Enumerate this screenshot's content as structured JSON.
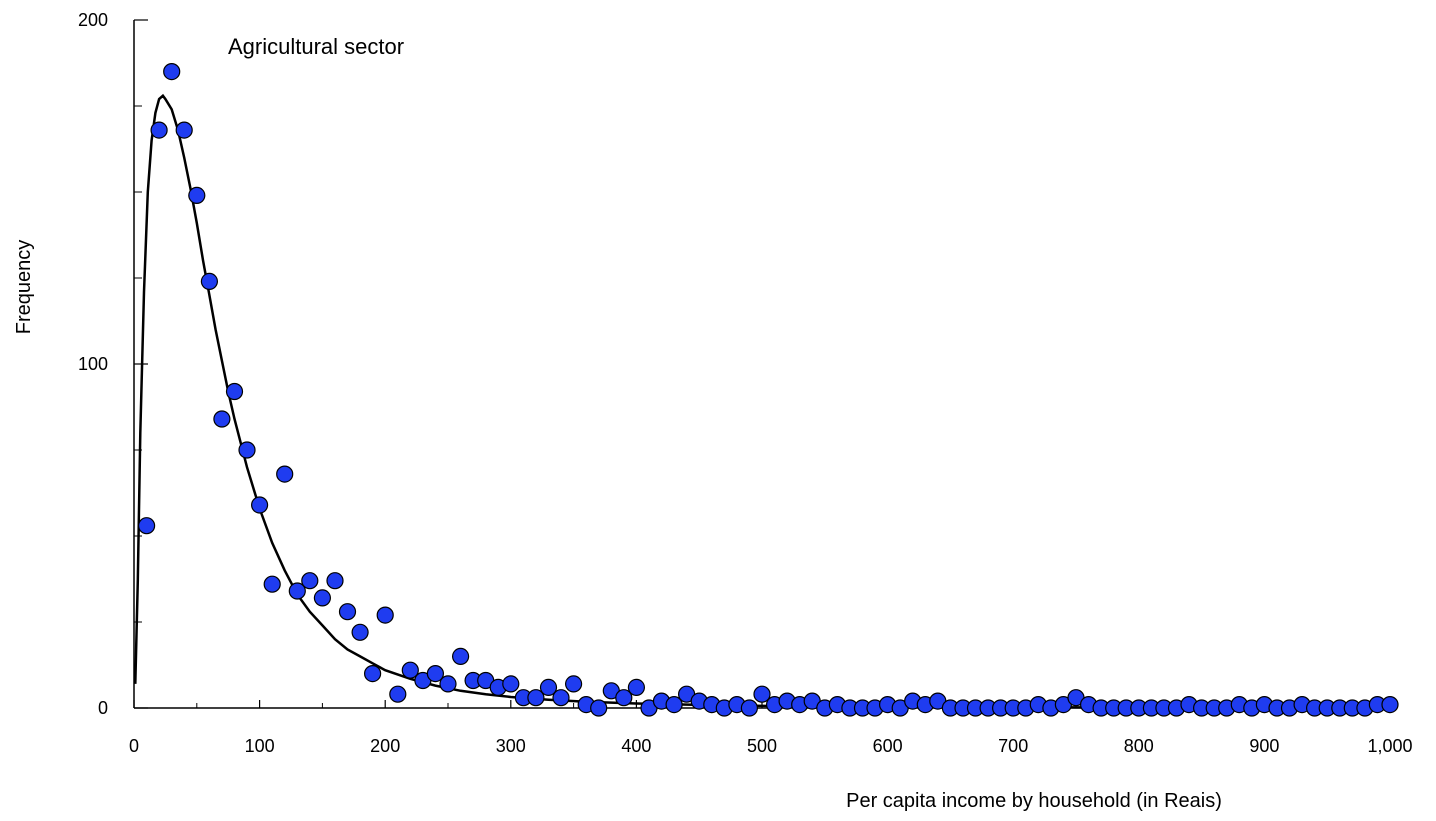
{
  "chart_data": {
    "type": "scatter",
    "annotation": "Agricultural sector",
    "xlabel": "Per capita income by household (in Reais)",
    "ylabel": "Frequency",
    "xlim": [
      0,
      1000
    ],
    "ylim": [
      0,
      200
    ],
    "x_ticks": [
      0,
      100,
      200,
      300,
      400,
      500,
      600,
      700,
      800,
      900,
      1000
    ],
    "x_tick_labels": [
      "0",
      "100",
      "200",
      "300",
      "400",
      "500",
      "600",
      "700",
      "800",
      "900",
      "1,000"
    ],
    "y_ticks": [
      0,
      100,
      200
    ],
    "y_tick_labels": [
      "0",
      "100",
      "200"
    ],
    "grid": false,
    "marker_color": "#1f3cf0",
    "curve_color": "#000000",
    "series": [
      {
        "type": "scatter",
        "points": [
          [
            10,
            53
          ],
          [
            20,
            168
          ],
          [
            30,
            185
          ],
          [
            40,
            168
          ],
          [
            50,
            149
          ],
          [
            60,
            124
          ],
          [
            70,
            84
          ],
          [
            80,
            92
          ],
          [
            90,
            75
          ],
          [
            100,
            59
          ],
          [
            110,
            36
          ],
          [
            120,
            68
          ],
          [
            130,
            34
          ],
          [
            140,
            37
          ],
          [
            150,
            32
          ],
          [
            160,
            37
          ],
          [
            170,
            28
          ],
          [
            180,
            22
          ],
          [
            190,
            10
          ],
          [
            200,
            27
          ],
          [
            210,
            4
          ],
          [
            220,
            11
          ],
          [
            230,
            8
          ],
          [
            240,
            10
          ],
          [
            250,
            7
          ],
          [
            260,
            15
          ],
          [
            270,
            8
          ],
          [
            280,
            8
          ],
          [
            290,
            6
          ],
          [
            300,
            7
          ],
          [
            310,
            3
          ],
          [
            320,
            3
          ],
          [
            330,
            6
          ],
          [
            340,
            3
          ],
          [
            350,
            7
          ],
          [
            360,
            1
          ],
          [
            370,
            0
          ],
          [
            380,
            5
          ],
          [
            390,
            3
          ],
          [
            400,
            6
          ],
          [
            410,
            0
          ],
          [
            420,
            2
          ],
          [
            430,
            1
          ],
          [
            440,
            4
          ],
          [
            450,
            2
          ],
          [
            460,
            1
          ],
          [
            470,
            0
          ],
          [
            480,
            1
          ],
          [
            490,
            0
          ],
          [
            500,
            4
          ],
          [
            510,
            1
          ],
          [
            520,
            2
          ],
          [
            530,
            1
          ],
          [
            540,
            2
          ],
          [
            550,
            0
          ],
          [
            560,
            1
          ],
          [
            570,
            0
          ],
          [
            580,
            0
          ],
          [
            590,
            0
          ],
          [
            600,
            1
          ],
          [
            610,
            0
          ],
          [
            620,
            2
          ],
          [
            630,
            1
          ],
          [
            640,
            2
          ],
          [
            650,
            0
          ],
          [
            660,
            0
          ],
          [
            670,
            0
          ],
          [
            680,
            0
          ],
          [
            690,
            0
          ],
          [
            700,
            0
          ],
          [
            710,
            0
          ],
          [
            720,
            1
          ],
          [
            730,
            0
          ],
          [
            740,
            1
          ],
          [
            750,
            3
          ],
          [
            760,
            1
          ],
          [
            770,
            0
          ],
          [
            780,
            0
          ],
          [
            790,
            0
          ],
          [
            800,
            0
          ],
          [
            810,
            0
          ],
          [
            820,
            0
          ],
          [
            830,
            0
          ],
          [
            840,
            1
          ],
          [
            850,
            0
          ],
          [
            860,
            0
          ],
          [
            870,
            0
          ],
          [
            880,
            1
          ],
          [
            890,
            0
          ],
          [
            900,
            1
          ],
          [
            910,
            0
          ],
          [
            920,
            0
          ],
          [
            930,
            1
          ],
          [
            940,
            0
          ],
          [
            950,
            0
          ],
          [
            960,
            0
          ],
          [
            970,
            0
          ],
          [
            980,
            0
          ],
          [
            990,
            1
          ],
          [
            1000,
            1
          ]
        ]
      },
      {
        "type": "line",
        "points": [
          [
            1,
            7
          ],
          [
            3,
            37
          ],
          [
            5,
            80
          ],
          [
            8,
            121
          ],
          [
            11,
            150
          ],
          [
            14,
            165
          ],
          [
            17,
            173
          ],
          [
            20,
            177
          ],
          [
            23,
            178
          ],
          [
            25,
            177
          ],
          [
            30,
            174
          ],
          [
            35,
            168
          ],
          [
            40,
            160
          ],
          [
            45,
            151
          ],
          [
            50,
            141
          ],
          [
            55,
            130
          ],
          [
            60,
            120
          ],
          [
            65,
            110
          ],
          [
            70,
            101
          ],
          [
            75,
            92
          ],
          [
            80,
            84
          ],
          [
            90,
            70
          ],
          [
            100,
            58
          ],
          [
            110,
            48
          ],
          [
            120,
            40
          ],
          [
            130,
            33
          ],
          [
            140,
            28
          ],
          [
            150,
            24
          ],
          [
            160,
            20
          ],
          [
            170,
            17
          ],
          [
            180,
            15
          ],
          [
            190,
            13
          ],
          [
            200,
            11
          ],
          [
            220,
            8.5
          ],
          [
            240,
            6.5
          ],
          [
            260,
            5
          ],
          [
            280,
            4
          ],
          [
            300,
            3.2
          ],
          [
            330,
            2.4
          ],
          [
            360,
            1.8
          ],
          [
            400,
            1.3
          ],
          [
            450,
            0.9
          ],
          [
            500,
            0.6
          ],
          [
            600,
            0.35
          ],
          [
            700,
            0.2
          ],
          [
            800,
            0.15
          ],
          [
            900,
            0.1
          ],
          [
            1000,
            0.08
          ]
        ]
      }
    ]
  }
}
